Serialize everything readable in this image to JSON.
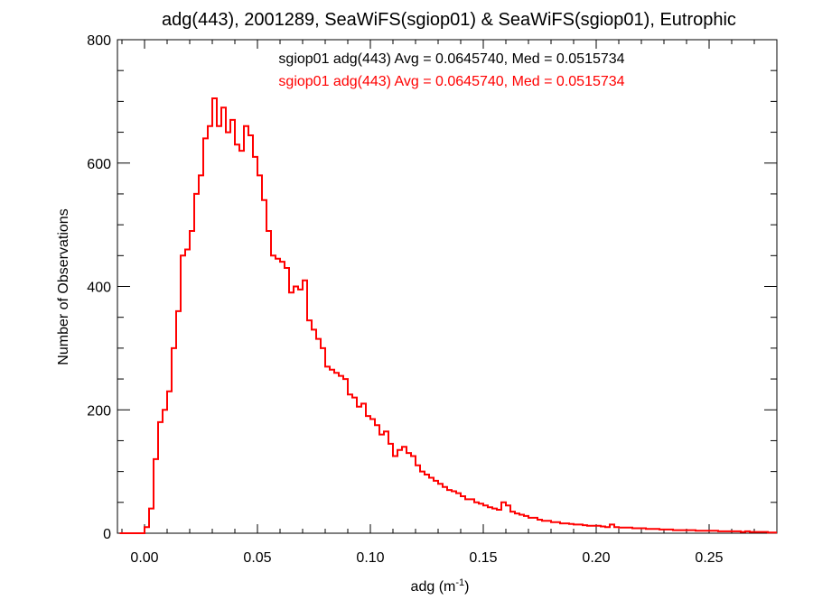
{
  "chart_data": {
    "type": "step-histogram",
    "title": "adg(443), 2001289, SeaWiFS(sgiop01) & SeaWiFS(sgiop01), Eutrophic",
    "xlabel": "adg (m",
    "xlabel_sup": "-1",
    "xlabel_end": ")",
    "ylabel": "Number of Observations",
    "xlim": [
      -0.012,
      0.28
    ],
    "ylim": [
      0,
      800
    ],
    "xticks": [
      0.0,
      0.05,
      0.1,
      0.15,
      0.2,
      0.25
    ],
    "xtick_labels": [
      "0.00",
      "0.05",
      "0.10",
      "0.15",
      "0.20",
      "0.25"
    ],
    "yticks": [
      0,
      200,
      400,
      600,
      800
    ],
    "ytick_labels": [
      "0",
      "200",
      "400",
      "600",
      "800"
    ],
    "grid": false,
    "annotations": [
      {
        "text": "sgiop01 adg(443) Avg = 0.0645740, Med = 0.0515734",
        "color": "#000000"
      },
      {
        "text": "sgiop01 adg(443) Avg = 0.0645740, Med = 0.0515734",
        "color": "#ff0000"
      }
    ],
    "series": [
      {
        "color": "#ff0000",
        "points": [
          [
            -0.011,
            0
          ],
          [
            -0.003,
            0
          ],
          [
            0.0,
            10
          ],
          [
            0.002,
            40
          ],
          [
            0.004,
            120
          ],
          [
            0.006,
            180
          ],
          [
            0.008,
            200
          ],
          [
            0.01,
            230
          ],
          [
            0.012,
            300
          ],
          [
            0.014,
            360
          ],
          [
            0.016,
            450
          ],
          [
            0.018,
            460
          ],
          [
            0.02,
            490
          ],
          [
            0.022,
            550
          ],
          [
            0.024,
            580
          ],
          [
            0.026,
            640
          ],
          [
            0.028,
            660
          ],
          [
            0.03,
            705
          ],
          [
            0.032,
            660
          ],
          [
            0.034,
            690
          ],
          [
            0.036,
            650
          ],
          [
            0.038,
            670
          ],
          [
            0.04,
            630
          ],
          [
            0.042,
            620
          ],
          [
            0.044,
            660
          ],
          [
            0.046,
            645
          ],
          [
            0.048,
            610
          ],
          [
            0.05,
            580
          ],
          [
            0.052,
            540
          ],
          [
            0.054,
            490
          ],
          [
            0.056,
            450
          ],
          [
            0.058,
            445
          ],
          [
            0.06,
            440
          ],
          [
            0.062,
            430
          ],
          [
            0.064,
            390
          ],
          [
            0.066,
            400
          ],
          [
            0.068,
            395
          ],
          [
            0.07,
            410
          ],
          [
            0.072,
            345
          ],
          [
            0.074,
            330
          ],
          [
            0.076,
            315
          ],
          [
            0.078,
            300
          ],
          [
            0.08,
            270
          ],
          [
            0.082,
            265
          ],
          [
            0.084,
            260
          ],
          [
            0.086,
            255
          ],
          [
            0.088,
            250
          ],
          [
            0.09,
            225
          ],
          [
            0.092,
            220
          ],
          [
            0.094,
            205
          ],
          [
            0.096,
            210
          ],
          [
            0.098,
            190
          ],
          [
            0.1,
            185
          ],
          [
            0.102,
            175
          ],
          [
            0.104,
            160
          ],
          [
            0.106,
            165
          ],
          [
            0.108,
            145
          ],
          [
            0.11,
            125
          ],
          [
            0.112,
            135
          ],
          [
            0.114,
            140
          ],
          [
            0.116,
            130
          ],
          [
            0.118,
            125
          ],
          [
            0.12,
            110
          ],
          [
            0.122,
            100
          ],
          [
            0.124,
            95
          ],
          [
            0.126,
            90
          ],
          [
            0.128,
            85
          ],
          [
            0.13,
            80
          ],
          [
            0.132,
            75
          ],
          [
            0.134,
            70
          ],
          [
            0.136,
            68
          ],
          [
            0.138,
            65
          ],
          [
            0.14,
            60
          ],
          [
            0.142,
            55
          ],
          [
            0.144,
            55
          ],
          [
            0.146,
            50
          ],
          [
            0.148,
            48
          ],
          [
            0.15,
            45
          ],
          [
            0.152,
            42
          ],
          [
            0.154,
            40
          ],
          [
            0.156,
            38
          ],
          [
            0.158,
            50
          ],
          [
            0.16,
            45
          ],
          [
            0.162,
            35
          ],
          [
            0.164,
            32
          ],
          [
            0.166,
            30
          ],
          [
            0.168,
            28
          ],
          [
            0.17,
            25
          ],
          [
            0.172,
            25
          ],
          [
            0.174,
            22
          ],
          [
            0.176,
            20
          ],
          [
            0.178,
            20
          ],
          [
            0.18,
            18
          ],
          [
            0.182,
            18
          ],
          [
            0.184,
            16
          ],
          [
            0.186,
            16
          ],
          [
            0.188,
            15
          ],
          [
            0.19,
            14
          ],
          [
            0.192,
            14
          ],
          [
            0.194,
            13
          ],
          [
            0.196,
            12
          ],
          [
            0.198,
            12
          ],
          [
            0.2,
            12
          ],
          [
            0.202,
            11
          ],
          [
            0.204,
            10
          ],
          [
            0.206,
            14
          ],
          [
            0.208,
            10
          ],
          [
            0.21,
            9
          ],
          [
            0.212,
            9
          ],
          [
            0.214,
            9
          ],
          [
            0.216,
            8
          ],
          [
            0.218,
            8
          ],
          [
            0.22,
            8
          ],
          [
            0.222,
            7
          ],
          [
            0.224,
            7
          ],
          [
            0.226,
            7
          ],
          [
            0.228,
            6
          ],
          [
            0.23,
            6
          ],
          [
            0.232,
            6
          ],
          [
            0.234,
            5
          ],
          [
            0.236,
            5
          ],
          [
            0.238,
            5
          ],
          [
            0.24,
            5
          ],
          [
            0.242,
            5
          ],
          [
            0.244,
            4
          ],
          [
            0.246,
            4
          ],
          [
            0.248,
            4
          ],
          [
            0.25,
            4
          ],
          [
            0.252,
            4
          ],
          [
            0.254,
            3
          ],
          [
            0.256,
            3
          ],
          [
            0.258,
            3
          ],
          [
            0.26,
            3
          ],
          [
            0.262,
            3
          ],
          [
            0.264,
            2
          ],
          [
            0.266,
            3
          ],
          [
            0.268,
            2
          ],
          [
            0.27,
            2
          ],
          [
            0.272,
            2
          ],
          [
            0.274,
            2
          ],
          [
            0.276,
            1
          ],
          [
            0.278,
            1
          ]
        ]
      }
    ]
  }
}
